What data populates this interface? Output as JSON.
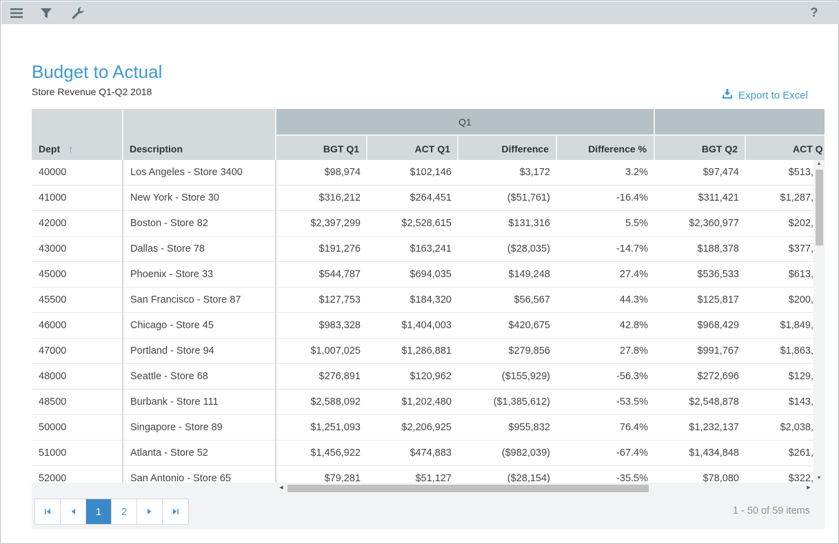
{
  "toolbar": {
    "help_label": "?"
  },
  "report": {
    "title": "Budget to Actual",
    "subtitle": "Store Revenue Q1-Q2 2018",
    "export_label": "Export to Excel"
  },
  "columns": {
    "dept": "Dept",
    "description": "Description",
    "group_q1": "Q1",
    "bgt_q1": "BGT Q1",
    "act_q1": "ACT Q1",
    "difference": "Difference",
    "difference_pct": "Difference %",
    "bgt_q2": "BGT Q2",
    "act_q2": "ACT Q"
  },
  "rows": [
    {
      "dept": "40000",
      "description": "Los Angeles - Store 3400",
      "bgt_q1": "$98,974",
      "act_q1": "$102,146",
      "difference": "$3,172",
      "difference_pct": "3.2%",
      "bgt_q2": "$97,474",
      "act_q2": "$513,"
    },
    {
      "dept": "41000",
      "description": "New York - Store 30",
      "bgt_q1": "$316,212",
      "act_q1": "$264,451",
      "difference": "($51,761)",
      "difference_pct": "-16.4%",
      "bgt_q2": "$311,421",
      "act_q2": "$1,287,"
    },
    {
      "dept": "42000",
      "description": "Boston - Store 82",
      "bgt_q1": "$2,397,299",
      "act_q1": "$2,528,615",
      "difference": "$131,316",
      "difference_pct": "5.5%",
      "bgt_q2": "$2,360,977",
      "act_q2": "$202,"
    },
    {
      "dept": "43000",
      "description": "Dallas - Store 78",
      "bgt_q1": "$191,276",
      "act_q1": "$163,241",
      "difference": "($28,035)",
      "difference_pct": "-14.7%",
      "bgt_q2": "$188,378",
      "act_q2": "$377,"
    },
    {
      "dept": "45000",
      "description": "Phoenix - Store 33",
      "bgt_q1": "$544,787",
      "act_q1": "$694,035",
      "difference": "$149,248",
      "difference_pct": "27.4%",
      "bgt_q2": "$536,533",
      "act_q2": "$613,"
    },
    {
      "dept": "45500",
      "description": "San Francisco - Store 87",
      "bgt_q1": "$127,753",
      "act_q1": "$184,320",
      "difference": "$56,567",
      "difference_pct": "44.3%",
      "bgt_q2": "$125,817",
      "act_q2": "$200,"
    },
    {
      "dept": "46000",
      "description": "Chicago - Store 45",
      "bgt_q1": "$983,328",
      "act_q1": "$1,404,003",
      "difference": "$420,675",
      "difference_pct": "42.8%",
      "bgt_q2": "$968,429",
      "act_q2": "$1,849,"
    },
    {
      "dept": "47000",
      "description": "Portland - Store 94",
      "bgt_q1": "$1,007,025",
      "act_q1": "$1,286,881",
      "difference": "$279,856",
      "difference_pct": "27.8%",
      "bgt_q2": "$991,767",
      "act_q2": "$1,863,"
    },
    {
      "dept": "48000",
      "description": "Seattle - Store 68",
      "bgt_q1": "$276,891",
      "act_q1": "$120,962",
      "difference": "($155,929)",
      "difference_pct": "-56.3%",
      "bgt_q2": "$272,696",
      "act_q2": "$129,"
    },
    {
      "dept": "48500",
      "description": "Burbank - Store 111",
      "bgt_q1": "$2,588,092",
      "act_q1": "$1,202,480",
      "difference": "($1,385,612)",
      "difference_pct": "-53.5%",
      "bgt_q2": "$2,548,878",
      "act_q2": "$143,"
    },
    {
      "dept": "50000",
      "description": "Singapore - Store 89",
      "bgt_q1": "$1,251,093",
      "act_q1": "$2,206,925",
      "difference": "$955,832",
      "difference_pct": "76.4%",
      "bgt_q2": "$1,232,137",
      "act_q2": "$2,038,"
    },
    {
      "dept": "51000",
      "description": "Atlanta - Store 52",
      "bgt_q1": "$1,456,922",
      "act_q1": "$474,883",
      "difference": "($982,039)",
      "difference_pct": "-67.4%",
      "bgt_q2": "$1,434,848",
      "act_q2": "$261,"
    },
    {
      "dept": "52000",
      "description": "San Antonio - Store 65",
      "bgt_q1": "$79,281",
      "act_q1": "$51,127",
      "difference": "($28,154)",
      "difference_pct": "-35.5%",
      "bgt_q2": "$78,080",
      "act_q2": "$322,"
    }
  ],
  "pager": {
    "pages": [
      "1",
      "2"
    ],
    "current_page": "1",
    "info": "1 - 50 of 59 items"
  },
  "colors": {
    "accent": "#3c9ad0",
    "header_bg": "#d4d9dc",
    "group_header_bg": "#b6c0c7",
    "toolbar_bg": "#d4dadd",
    "active_page": "#3c89c9"
  },
  "icons": [
    "menu-icon",
    "filter-icon",
    "wrench-icon",
    "help-icon",
    "download-icon",
    "sort-ascending-icon",
    "first-page-icon",
    "prev-page-icon",
    "next-page-icon",
    "last-page-icon"
  ]
}
